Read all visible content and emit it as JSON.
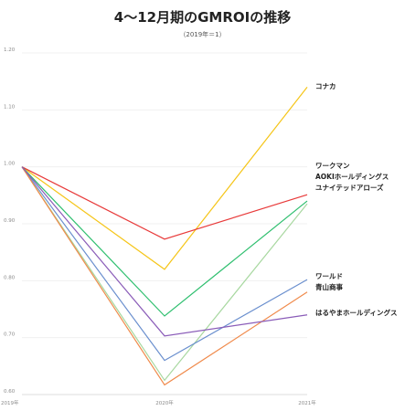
{
  "chart_data": {
    "type": "line",
    "title": "4～12月期のGMROIの推移",
    "subtitle": "（2019年＝1）",
    "xlabel": "",
    "ylabel": "",
    "categories": [
      "2019年",
      "2020年",
      "2021年"
    ],
    "ylim": [
      0.6,
      1.2
    ],
    "yticks": [
      "0.60",
      "0.70",
      "0.80",
      "0.90",
      "1.00",
      "1.10",
      "1.20"
    ],
    "grid": true,
    "legend": "labels at line ends (right)",
    "series": [
      {
        "name": "コナカ",
        "color": "#f5c518",
        "values": [
          1.0,
          0.82,
          1.14
        ]
      },
      {
        "name": "ワークマン",
        "color": "#e83a3a",
        "values": [
          1.0,
          0.873,
          0.951
        ]
      },
      {
        "name": "AOKIホールディングス",
        "color": "#2fbf6f",
        "values": [
          1.0,
          0.738,
          0.94
        ]
      },
      {
        "name": "ユナイテッドアローズ",
        "color": "#a8d8a0",
        "values": [
          1.0,
          0.625,
          0.935
        ]
      },
      {
        "name": "ワールド",
        "color": "#6a8fce",
        "values": [
          1.0,
          0.66,
          0.802
        ]
      },
      {
        "name": "青山商事",
        "color": "#f08a4b",
        "values": [
          1.0,
          0.617,
          0.78
        ]
      },
      {
        "name": "はるやまホールディングス",
        "color": "#8a5cb8",
        "values": [
          1.0,
          0.703,
          0.74
        ]
      }
    ],
    "labels": [
      {
        "text": "コナカ",
        "series": "コナカ"
      },
      {
        "text": "ワークマン",
        "series": "ワークマン"
      },
      {
        "text": "AOKIホールディングス",
        "series": "AOKIホールディングス"
      },
      {
        "text": "ユナイテッドアローズ",
        "series": "ユナイテッドアローズ"
      },
      {
        "text": "ワールド",
        "series": "ワールド"
      },
      {
        "text": "青山商事",
        "series": "青山商事"
      },
      {
        "text": "はるやまホールディングス",
        "series": "はるやまホールディングス"
      }
    ]
  }
}
